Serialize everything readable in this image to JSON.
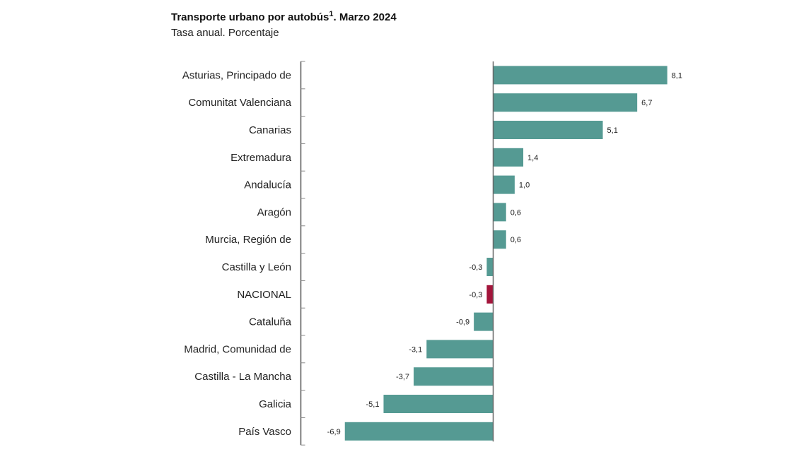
{
  "chart_data": {
    "type": "bar",
    "orientation": "horizontal",
    "title": "Transporte urbano por autobús",
    "title_superscript": "1",
    "title_suffix": ". Marzo 2024",
    "subtitle": "Tasa anual. Porcentaje",
    "categories": [
      "Asturias, Principado de",
      "Comunitat Valenciana",
      "Canarias",
      "Extremadura",
      "Andalucía",
      "Aragón",
      "Murcia, Región de",
      "Castilla y León",
      "NACIONAL",
      "Cataluña",
      "Madrid, Comunidad de",
      "Castilla - La Mancha",
      "Galicia",
      "País Vasco"
    ],
    "values": [
      8.1,
      6.7,
      5.1,
      1.4,
      1.0,
      0.6,
      0.6,
      -0.3,
      -0.3,
      -0.9,
      -3.1,
      -3.7,
      -5.1,
      -6.9
    ],
    "data_labels": [
      "8,1",
      "6,7",
      "5,1",
      "1,4",
      "1,0",
      "0,6",
      "0,6",
      "-0,3",
      "-0,3",
      "-0,9",
      "-3,1",
      "-3,7",
      "-5,1",
      "-6,9"
    ],
    "highlight_category": "NACIONAL",
    "colors": {
      "bar": "#559a93",
      "highlight": "#a3153b",
      "axis": "#555555"
    },
    "grid": false,
    "legend": "none"
  }
}
